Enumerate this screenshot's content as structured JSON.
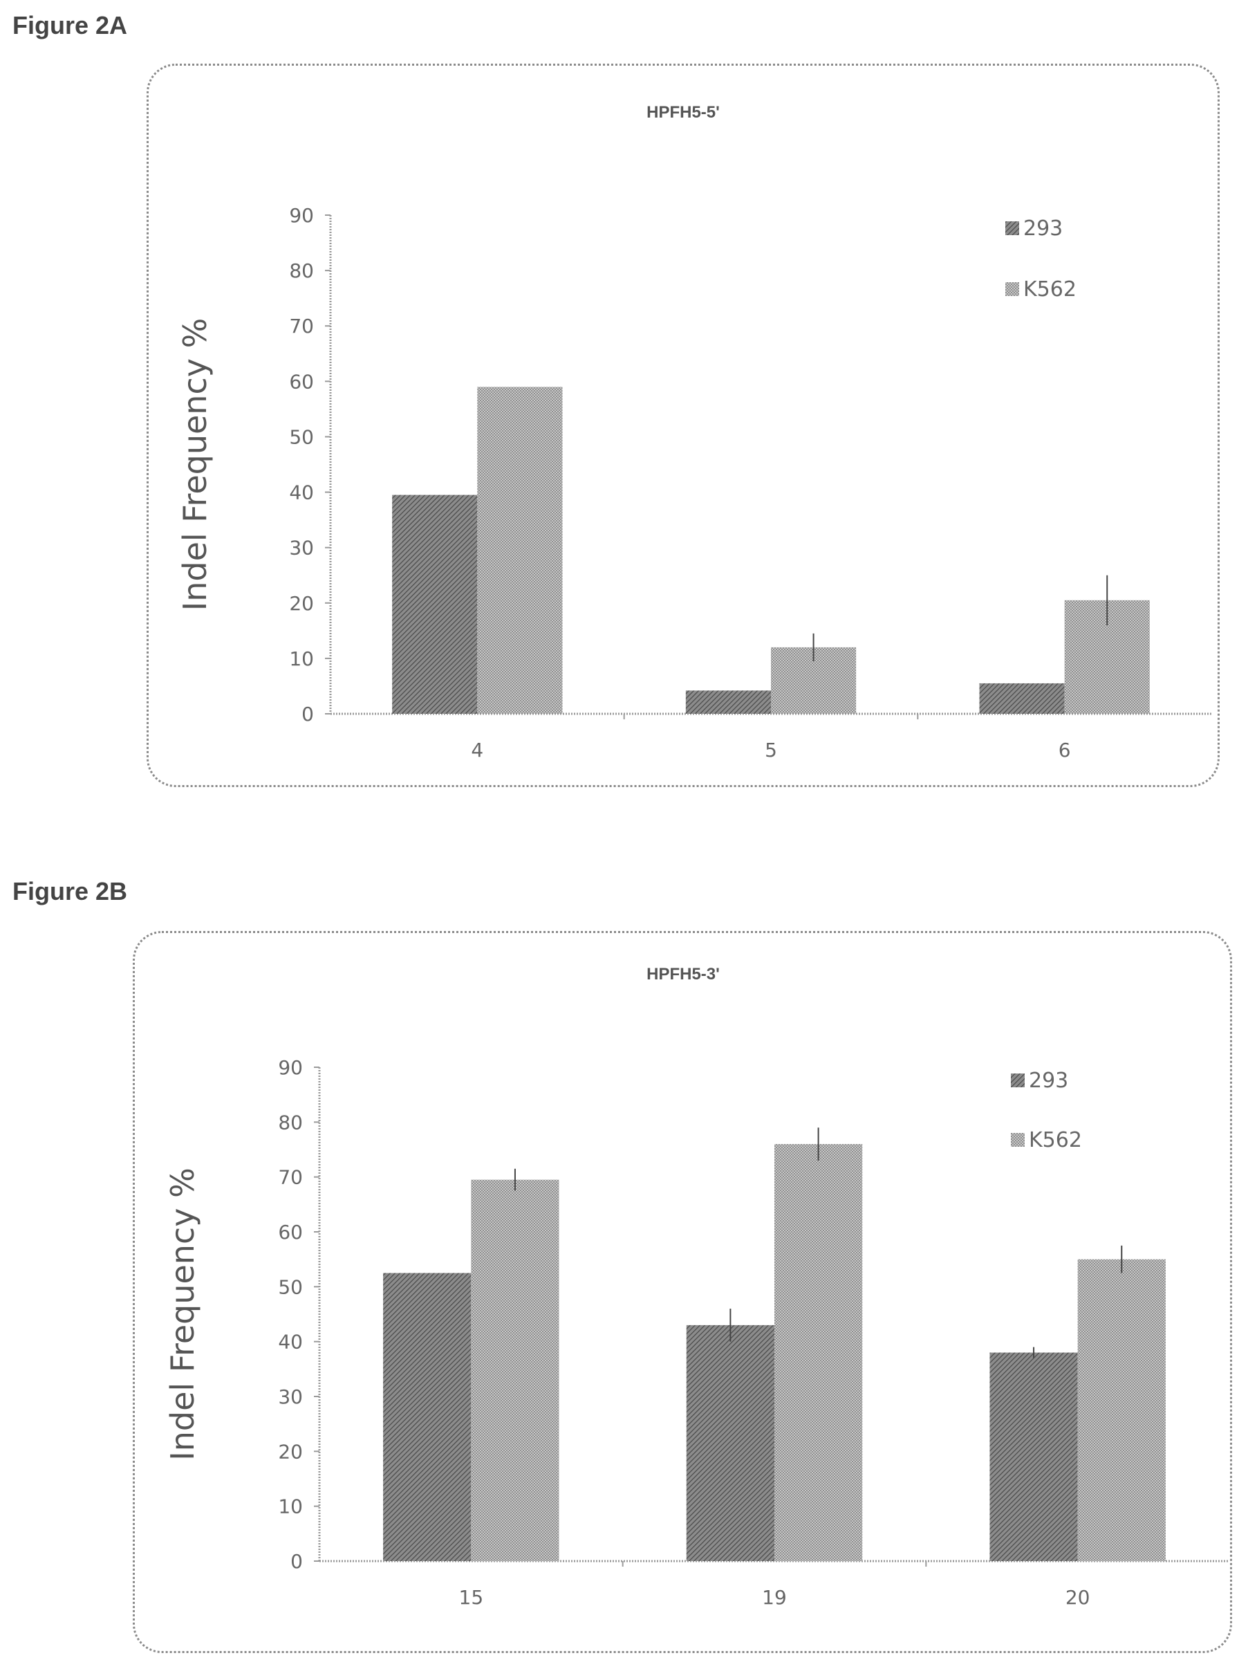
{
  "figures": [
    {
      "label": "Figure 2A",
      "chart_data": {
        "type": "bar",
        "title": "HPFH5-5'",
        "xlabel": "",
        "ylabel": "Indel Frequency %",
        "categories": [
          "4",
          "5",
          "6"
        ],
        "series": [
          {
            "name": "293",
            "values": [
              39.5,
              4.2,
              5.5
            ],
            "errors": [
              0,
              0,
              0
            ],
            "color": "#6f6f6f"
          },
          {
            "name": "K562",
            "values": [
              59,
              12,
              20.5
            ],
            "errors": [
              0,
              2.5,
              4.5
            ],
            "color": "#a9a9a9"
          }
        ],
        "ylim": [
          0,
          90
        ],
        "yticks": [
          0,
          10,
          20,
          30,
          40,
          50,
          60,
          70,
          80,
          90
        ],
        "legend_position": "top-right",
        "grid": false
      }
    },
    {
      "label": "Figure 2B",
      "chart_data": {
        "type": "bar",
        "title": "HPFH5-3'",
        "xlabel": "",
        "ylabel": "Indel Frequency %",
        "categories": [
          "15",
          "19",
          "20"
        ],
        "series": [
          {
            "name": "293",
            "values": [
              52.5,
              43,
              38
            ],
            "errors": [
              0,
              3,
              1
            ],
            "color": "#6f6f6f"
          },
          {
            "name": "K562",
            "values": [
              69.5,
              76,
              55
            ],
            "errors": [
              2,
              3,
              2.5
            ],
            "color": "#a9a9a9"
          }
        ],
        "ylim": [
          0,
          90
        ],
        "yticks": [
          0,
          10,
          20,
          30,
          40,
          50,
          60,
          70,
          80,
          90
        ],
        "legend_position": "top-right",
        "grid": false
      }
    }
  ]
}
